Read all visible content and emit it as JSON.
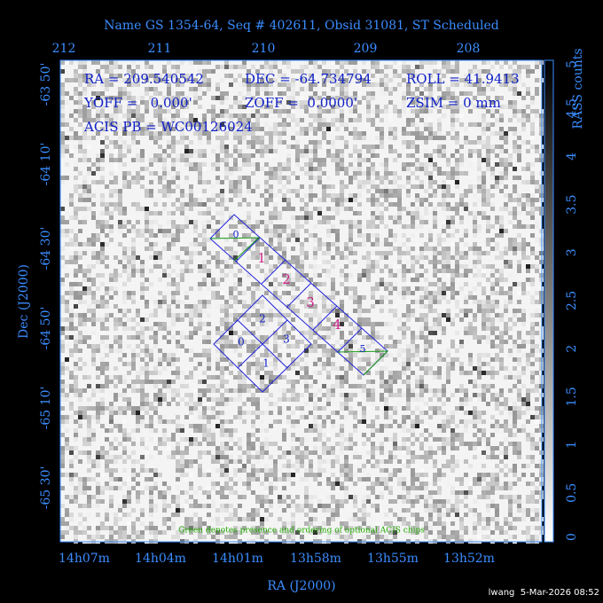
{
  "title": "Name GS 1354-64, Seq # 402611, Obsid 31081, ST Scheduled",
  "top_axis_labels": [
    "212",
    "211",
    "210",
    "209",
    "208"
  ],
  "left_axis_labels": [
    "-63 50'",
    "-64 10'",
    "-64 30'",
    "-64 50'",
    "-65 10'",
    "-65 30'"
  ],
  "bottom_axis_labels": [
    "14h07m",
    "14h04m",
    "14h01m",
    "13h58m",
    "13h55m",
    "13h52m"
  ],
  "x_axis_title": "RA (J2000)",
  "y_axis_title": "Dec (J2000)",
  "colorbar_title": "RASS counts",
  "colorbar_ticks": [
    "0",
    "0.5",
    "1",
    "1.5",
    "2",
    "2.5",
    "3",
    "3.5",
    "4",
    "4.5",
    "5"
  ],
  "info": [
    "RA = 209.540542",
    "DEC = -64.734794",
    "ROLL = 41.9413",
    "YOFF =   0.000'",
    "ZOFF =  0.0000'",
    "ZSIM = 0 mm",
    "ACIS PB = WC00126024"
  ],
  "i_chips": [
    "0",
    "1",
    "2",
    "3"
  ],
  "s_chips": [
    "0",
    "1",
    "2",
    "3",
    "4",
    "5"
  ],
  "note": "Green denotes presence and ordering of optional ACIS chips",
  "footer": "lwang  5-Mar-2026 08:52"
}
